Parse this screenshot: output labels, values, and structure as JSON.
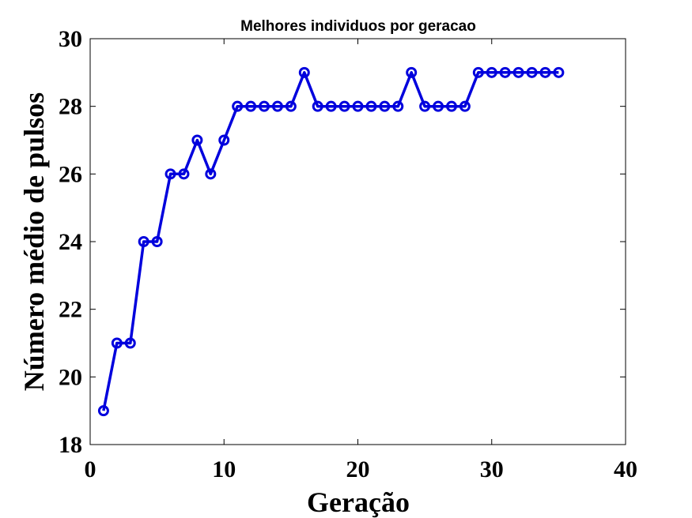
{
  "chart_data": {
    "type": "line",
    "title": "Melhores individuos por geracao",
    "xlabel": "Geração",
    "ylabel": "Número médio de pulsos",
    "xlim": [
      0,
      40
    ],
    "ylim": [
      18,
      30
    ],
    "xticks": [
      0,
      10,
      20,
      30,
      40
    ],
    "yticks": [
      18,
      20,
      22,
      24,
      26,
      28,
      30
    ],
    "grid": false,
    "marker": "circle",
    "series": [
      {
        "color": "#0000dd",
        "x": [
          1,
          2,
          3,
          4,
          5,
          6,
          7,
          8,
          9,
          10,
          11,
          12,
          13,
          14,
          15,
          16,
          17,
          18,
          19,
          20,
          21,
          22,
          23,
          24,
          25,
          26,
          27,
          28,
          29,
          30,
          31,
          32,
          33,
          34,
          35
        ],
        "y": [
          19,
          21,
          21,
          24,
          24,
          26,
          26,
          27,
          26,
          27,
          28,
          28,
          28,
          28,
          28,
          29,
          28,
          28,
          28,
          28,
          28,
          28,
          28,
          29,
          28,
          28,
          28,
          28,
          29,
          29,
          29,
          29,
          29,
          29,
          29
        ]
      }
    ]
  }
}
